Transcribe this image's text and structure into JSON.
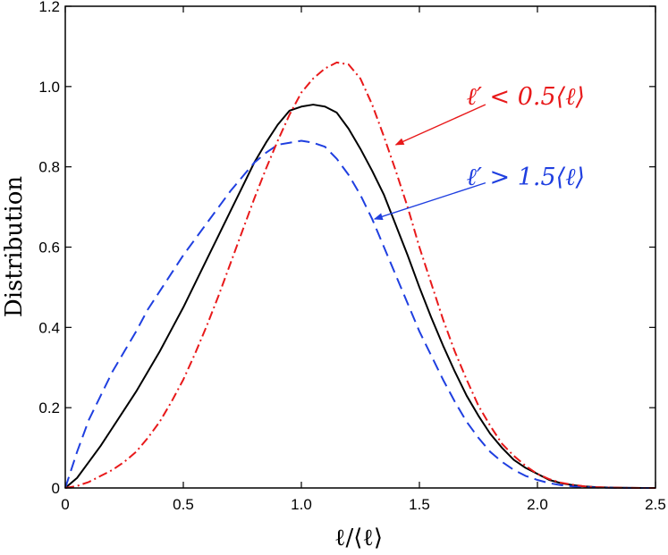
{
  "chart_data": {
    "type": "line",
    "xlabel": "ℓ/⟨ℓ⟩",
    "ylabel": "Distribution",
    "xlim": [
      0,
      2.5
    ],
    "ylim": [
      0,
      1.2
    ],
    "xticks": [
      0,
      0.5,
      1.0,
      1.5,
      2.0,
      2.5
    ],
    "xtick_labels": [
      "0",
      "0.5",
      "1.0",
      "1.5",
      "2.0",
      "2.5"
    ],
    "yticks": [
      0,
      0.2,
      0.4,
      0.6,
      0.8,
      1.0,
      1.2
    ],
    "ytick_labels": [
      "0",
      "0.2",
      "0.4",
      "0.6",
      "0.8",
      "1.0",
      "1.2"
    ],
    "grid": false,
    "series": [
      {
        "style": "solid",
        "color": "#000000",
        "x": [
          0,
          0.05,
          0.1,
          0.15,
          0.2,
          0.25,
          0.3,
          0.35,
          0.4,
          0.45,
          0.5,
          0.55,
          0.6,
          0.65,
          0.7,
          0.75,
          0.8,
          0.85,
          0.9,
          0.95,
          1.0,
          1.05,
          1.1,
          1.15,
          1.2,
          1.25,
          1.3,
          1.35,
          1.4,
          1.45,
          1.5,
          1.55,
          1.6,
          1.65,
          1.7,
          1.75,
          1.8,
          1.85,
          1.9,
          1.95,
          2.0,
          2.05,
          2.1,
          2.15,
          2.2,
          2.25,
          2.3,
          2.35,
          2.4,
          2.45,
          2.5
        ],
        "y": [
          0,
          0.025,
          0.065,
          0.105,
          0.15,
          0.195,
          0.24,
          0.29,
          0.34,
          0.395,
          0.45,
          0.51,
          0.57,
          0.63,
          0.69,
          0.75,
          0.81,
          0.86,
          0.905,
          0.94,
          0.95,
          0.955,
          0.95,
          0.935,
          0.895,
          0.845,
          0.79,
          0.73,
          0.655,
          0.58,
          0.5,
          0.425,
          0.355,
          0.29,
          0.23,
          0.18,
          0.135,
          0.1,
          0.07,
          0.05,
          0.035,
          0.02,
          0.012,
          0.007,
          0.004,
          0.002,
          0.001,
          0.0005,
          0.0002,
          0.0001,
          0
        ]
      },
      {
        "style": "dashed",
        "color": "#1f3fe0",
        "x": [
          0,
          0.05,
          0.1,
          0.15,
          0.2,
          0.25,
          0.3,
          0.35,
          0.4,
          0.45,
          0.5,
          0.55,
          0.6,
          0.65,
          0.7,
          0.75,
          0.8,
          0.85,
          0.9,
          0.95,
          1.0,
          1.05,
          1.1,
          1.15,
          1.2,
          1.25,
          1.3,
          1.35,
          1.4,
          1.45,
          1.5,
          1.55,
          1.6,
          1.65,
          1.7,
          1.75,
          1.8,
          1.85,
          1.9,
          1.95,
          2.0,
          2.05,
          2.1,
          2.15,
          2.2,
          2.25,
          2.3,
          2.35,
          2.4,
          2.45,
          2.5
        ],
        "y": [
          0,
          0.09,
          0.17,
          0.23,
          0.29,
          0.34,
          0.39,
          0.445,
          0.49,
          0.535,
          0.58,
          0.62,
          0.66,
          0.7,
          0.74,
          0.775,
          0.81,
          0.835,
          0.855,
          0.86,
          0.865,
          0.86,
          0.85,
          0.82,
          0.78,
          0.73,
          0.67,
          0.6,
          0.53,
          0.46,
          0.39,
          0.33,
          0.27,
          0.215,
          0.165,
          0.125,
          0.09,
          0.065,
          0.045,
          0.03,
          0.02,
          0.012,
          0.007,
          0.004,
          0.002,
          0.001,
          0.0005,
          0.0002,
          0.0001,
          5e-05,
          0
        ]
      },
      {
        "style": "dashdot",
        "color": "#e8191a",
        "x": [
          0,
          0.05,
          0.1,
          0.15,
          0.2,
          0.25,
          0.3,
          0.35,
          0.4,
          0.45,
          0.5,
          0.55,
          0.6,
          0.65,
          0.7,
          0.75,
          0.8,
          0.85,
          0.9,
          0.95,
          1.0,
          1.05,
          1.1,
          1.15,
          1.2,
          1.25,
          1.3,
          1.35,
          1.4,
          1.45,
          1.5,
          1.55,
          1.6,
          1.65,
          1.7,
          1.75,
          1.8,
          1.85,
          1.9,
          1.95,
          2.0,
          2.05,
          2.1,
          2.15,
          2.2,
          2.25,
          2.3,
          2.35,
          2.4,
          2.45,
          2.5
        ],
        "y": [
          0,
          0.005,
          0.015,
          0.03,
          0.045,
          0.065,
          0.09,
          0.125,
          0.165,
          0.215,
          0.27,
          0.335,
          0.405,
          0.48,
          0.56,
          0.64,
          0.72,
          0.795,
          0.865,
          0.93,
          0.985,
          1.02,
          1.045,
          1.06,
          1.055,
          1.02,
          0.955,
          0.875,
          0.79,
          0.7,
          0.6,
          0.51,
          0.42,
          0.34,
          0.27,
          0.205,
          0.155,
          0.11,
          0.08,
          0.055,
          0.035,
          0.022,
          0.013,
          0.008,
          0.004,
          0.002,
          0.001,
          0.0005,
          0.0002,
          0.0001,
          0
        ]
      }
    ],
    "annotations": [
      {
        "text": "ℓ′ < 0.5⟨ℓ⟩",
        "color": "#e8191a",
        "text_at": [
          1.95,
          0.955
        ],
        "arrow_from": [
          1.78,
          0.955
        ],
        "arrow_to": [
          1.4,
          0.855
        ]
      },
      {
        "text": "ℓ′ > 1.5⟨ℓ⟩",
        "color": "#1f3fe0",
        "text_at": [
          1.95,
          0.755
        ],
        "arrow_from": [
          1.78,
          0.76
        ],
        "arrow_to": [
          1.31,
          0.67
        ]
      }
    ]
  }
}
